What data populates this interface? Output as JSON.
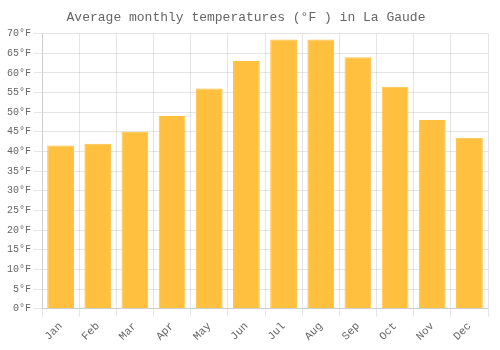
{
  "chart_data": {
    "type": "bar",
    "title": "Average monthly temperatures (°F ) in La Gaude",
    "categories": [
      "Jan",
      "Feb",
      "Mar",
      "Apr",
      "May",
      "Jun",
      "Jul",
      "Aug",
      "Sep",
      "Oct",
      "Nov",
      "Dec"
    ],
    "values": [
      41.5,
      42.0,
      45.0,
      49.0,
      56.0,
      63.0,
      68.5,
      68.5,
      64.0,
      56.5,
      48.0,
      43.5
    ],
    "color": "#FFC040",
    "ylim": [
      0,
      70
    ],
    "yticks": [
      {
        "value": 0,
        "label": "0°F"
      },
      {
        "value": 5,
        "label": "5°F"
      },
      {
        "value": 10,
        "label": "10°F"
      },
      {
        "value": 15,
        "label": "15°F"
      },
      {
        "value": 20,
        "label": "20°F"
      },
      {
        "value": 25,
        "label": "25°F"
      },
      {
        "value": 30,
        "label": "30°F"
      },
      {
        "value": 35,
        "label": "35°F"
      },
      {
        "value": 40,
        "label": "40°F"
      },
      {
        "value": 45,
        "label": "45°F"
      },
      {
        "value": 50,
        "label": "50°F"
      },
      {
        "value": 55,
        "label": "55°F"
      },
      {
        "value": 60,
        "label": "60°F"
      },
      {
        "value": 65,
        "label": "65°F"
      },
      {
        "value": 70,
        "label": "70°F"
      }
    ],
    "grid": true
  }
}
